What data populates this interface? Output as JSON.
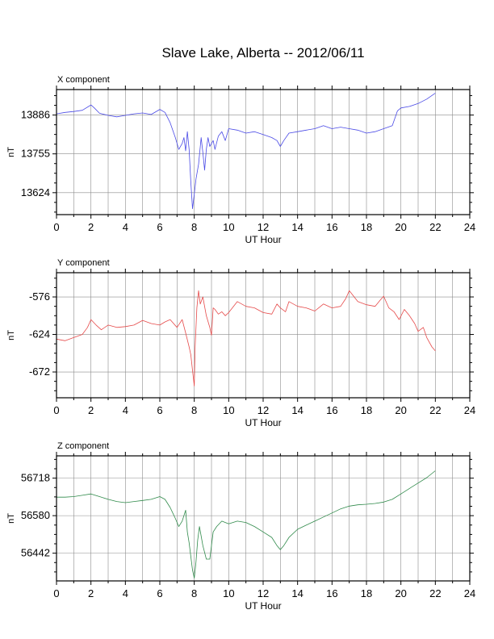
{
  "title": "Slave Lake, Alberta -- 2012/06/11",
  "chart_data": [
    {
      "type": "line",
      "panel_title": "X component",
      "xlabel": "UT Hour",
      "ylabel": "nT",
      "xlim": [
        0,
        24
      ],
      "ylim": [
        13550,
        13972
      ],
      "xticks": [
        0,
        2,
        4,
        6,
        8,
        10,
        12,
        14,
        16,
        18,
        20,
        22,
        24
      ],
      "yticks": [
        13624,
        13755,
        13886
      ],
      "grid": true,
      "color": "#4a4ae6",
      "series": [
        {
          "x": [
            0,
            0.5,
            1,
            1.5,
            2,
            2.2,
            2.5,
            3,
            3.5,
            4,
            4.5,
            5,
            5.5,
            6,
            6.3,
            6.6,
            6.9,
            7.1,
            7.3,
            7.4,
            7.5,
            7.6,
            7.7,
            7.8,
            7.9,
            8.0,
            8.1,
            8.25,
            8.4,
            8.5,
            8.6,
            8.7,
            8.8,
            8.9,
            9.0,
            9.1,
            9.2,
            9.4,
            9.6,
            9.8,
            10,
            10.5,
            11,
            11.5,
            12,
            12.5,
            12.8,
            13.0,
            13.2,
            13.5,
            14,
            14.5,
            15,
            15.5,
            16,
            16.5,
            17,
            17.5,
            18,
            18.5,
            19,
            19.5,
            19.8,
            20,
            20.5,
            21,
            21.5,
            22
          ],
          "y": [
            13890,
            13895,
            13898,
            13902,
            13920,
            13910,
            13892,
            13885,
            13880,
            13885,
            13890,
            13893,
            13888,
            13905,
            13895,
            13860,
            13810,
            13770,
            13790,
            13810,
            13765,
            13830,
            13770,
            13660,
            13570,
            13620,
            13670,
            13720,
            13810,
            13760,
            13700,
            13770,
            13810,
            13780,
            13790,
            13800,
            13770,
            13815,
            13830,
            13800,
            13840,
            13835,
            13825,
            13830,
            13820,
            13810,
            13800,
            13780,
            13800,
            13825,
            13830,
            13835,
            13840,
            13850,
            13840,
            13845,
            13840,
            13835,
            13825,
            13830,
            13840,
            13850,
            13900,
            13910,
            13915,
            13925,
            13940,
            13960
          ]
        }
      ]
    },
    {
      "type": "line",
      "panel_title": "Y component",
      "xlabel": "UT Hour",
      "ylabel": "nT",
      "xlim": [
        0,
        24
      ],
      "ylim": [
        -705,
        -545
      ],
      "xticks": [
        0,
        2,
        4,
        6,
        8,
        10,
        12,
        14,
        16,
        18,
        20,
        22,
        24
      ],
      "yticks": [
        -576,
        -624,
        -672
      ],
      "grid": true,
      "color": "#e64a4a",
      "series": [
        {
          "x": [
            0,
            0.5,
            1,
            1.5,
            1.8,
            2,
            2.3,
            2.6,
            3,
            3.5,
            4,
            4.5,
            5,
            5.5,
            6,
            6.3,
            6.6,
            7,
            7.3,
            7.5,
            7.7,
            7.8,
            7.9,
            8.0,
            8.05,
            8.15,
            8.25,
            8.35,
            8.5,
            8.7,
            8.9,
            9.0,
            9.1,
            9.2,
            9.4,
            9.6,
            9.8,
            10,
            10.5,
            11,
            11.5,
            12,
            12.5,
            12.8,
            13,
            13.3,
            13.5,
            14,
            14.5,
            15,
            15.5,
            16,
            16.5,
            16.8,
            17,
            17.5,
            18,
            18.5,
            18.8,
            19,
            19.3,
            19.6,
            19.9,
            20.2,
            20.5,
            20.8,
            21,
            21.3,
            21.5,
            21.8,
            22
          ],
          "y": [
            -630,
            -632,
            -628,
            -624,
            -615,
            -605,
            -612,
            -618,
            -612,
            -615,
            -614,
            -612,
            -606,
            -610,
            -612,
            -608,
            -605,
            -615,
            -605,
            -622,
            -640,
            -650,
            -670,
            -690,
            -640,
            -590,
            -568,
            -585,
            -576,
            -600,
            -615,
            -625,
            -590,
            -592,
            -598,
            -595,
            -600,
            -596,
            -582,
            -588,
            -590,
            -596,
            -598,
            -585,
            -590,
            -595,
            -582,
            -588,
            -590,
            -594,
            -585,
            -590,
            -588,
            -578,
            -568,
            -582,
            -586,
            -588,
            -580,
            -575,
            -590,
            -595,
            -605,
            -592,
            -600,
            -610,
            -620,
            -615,
            -628,
            -640,
            -645
          ]
        }
      ]
    },
    {
      "type": "line",
      "panel_title": "Z component",
      "xlabel": "UT Hour",
      "ylabel": "nT",
      "xlim": [
        0,
        24
      ],
      "ylim": [
        56340,
        56800
      ],
      "xticks": [
        0,
        2,
        4,
        6,
        8,
        10,
        12,
        14,
        16,
        18,
        20,
        22,
        24
      ],
      "yticks": [
        56442,
        56580,
        56718
      ],
      "grid": true,
      "color": "#2f8a4a",
      "series": [
        {
          "x": [
            0,
            0.5,
            1,
            1.5,
            2,
            2.5,
            3,
            3.5,
            4,
            4.5,
            5,
            5.5,
            6,
            6.3,
            6.6,
            6.9,
            7.1,
            7.3,
            7.5,
            7.6,
            7.7,
            7.8,
            7.9,
            8.0,
            8.1,
            8.2,
            8.3,
            8.5,
            8.7,
            8.9,
            9.1,
            9.3,
            9.6,
            10,
            10.5,
            11,
            11.5,
            12,
            12.5,
            12.8,
            13.0,
            13.2,
            13.5,
            14,
            14.5,
            15,
            15.5,
            16,
            16.5,
            17,
            17.5,
            18,
            18.5,
            19,
            19.5,
            20,
            20.5,
            21,
            21.5,
            22
          ],
          "y": [
            56648,
            56648,
            56650,
            56655,
            56660,
            56650,
            56640,
            56632,
            56628,
            56632,
            56636,
            56640,
            56650,
            56640,
            56610,
            56570,
            56540,
            56560,
            56600,
            56520,
            56480,
            56430,
            56380,
            56350,
            56410,
            56490,
            56540,
            56470,
            56420,
            56420,
            56520,
            56540,
            56560,
            56550,
            56560,
            56555,
            56540,
            56520,
            56500,
            56470,
            56455,
            56470,
            56500,
            56530,
            56545,
            56560,
            56575,
            56590,
            56605,
            56615,
            56620,
            56622,
            56625,
            56630,
            56640,
            56660,
            56680,
            56700,
            56720,
            56745
          ]
        }
      ]
    }
  ]
}
